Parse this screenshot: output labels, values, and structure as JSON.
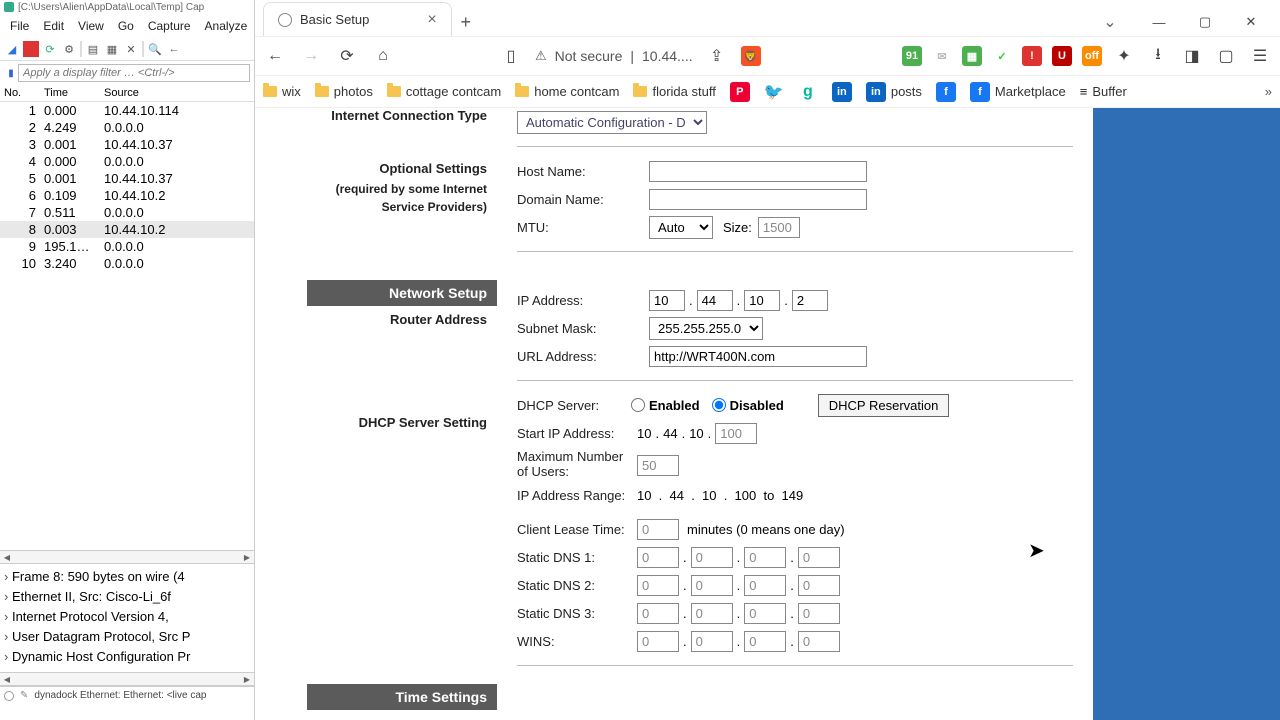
{
  "wireshark": {
    "title": "[C:\\Users\\Alien\\AppData\\Local\\Temp] Cap",
    "menus": [
      "File",
      "Edit",
      "View",
      "Go",
      "Capture",
      "Analyze"
    ],
    "filter_placeholder": "Apply a display filter … <Ctrl-/>",
    "cols": [
      "No.",
      "Time",
      "Source"
    ],
    "packets": [
      {
        "no": "1",
        "t": "0.000",
        "src": "10.44.10.114"
      },
      {
        "no": "2",
        "t": "4.249",
        "src": "0.0.0.0"
      },
      {
        "no": "3",
        "t": "0.001",
        "src": "10.44.10.37"
      },
      {
        "no": "4",
        "t": "0.000",
        "src": "0.0.0.0"
      },
      {
        "no": "5",
        "t": "0.001",
        "src": "10.44.10.37"
      },
      {
        "no": "6",
        "t": "0.109",
        "src": "10.44.10.2"
      },
      {
        "no": "7",
        "t": "0.511",
        "src": "0.0.0.0"
      },
      {
        "no": "8",
        "t": "0.003",
        "src": "10.44.10.2",
        "sel": true
      },
      {
        "no": "9",
        "t": "195.1…",
        "src": "0.0.0.0"
      },
      {
        "no": "10",
        "t": "3.240",
        "src": "0.0.0.0"
      }
    ],
    "details": [
      "Frame 8: 590 bytes on wire (4",
      "Ethernet II, Src: Cisco-Li_6f",
      "Internet Protocol Version 4,",
      "User Datagram Protocol, Src P",
      "Dynamic Host Configuration Pr"
    ],
    "status": "dynadock Ethernet: Ethernet: <live cap"
  },
  "browser": {
    "tab_title": "Basic Setup",
    "url_warn": "Not secure",
    "url_host": "10.44....",
    "bookmarks": [
      "wix",
      "photos",
      "cottage contcam",
      "home contcam",
      "florida stuff"
    ],
    "bookmark_ext": [
      "posts",
      "Marketplace",
      "Buffer"
    ]
  },
  "router": {
    "conn_label": "Internet Connection Type",
    "conn_value": "Automatic Configuration - DHCP",
    "opt_head": "Optional Settings",
    "opt_sub1": "(required by some Internet",
    "opt_sub2": "Service Providers)",
    "host_label": "Host Name:",
    "domain_label": "Domain Name:",
    "mtu_label": "MTU:",
    "mtu_mode": "Auto",
    "mtu_size_label": "Size:",
    "mtu_size": "1500",
    "net_setup": "Network Setup",
    "router_addr": "Router Address",
    "ip_label": "IP Address:",
    "ip": [
      "10",
      "44",
      "10",
      "2"
    ],
    "mask_label": "Subnet Mask:",
    "mask": "255.255.255.0",
    "url_label": "URL Address:",
    "url_val": "http://WRT400N.com",
    "dhcp_head": "DHCP Server Setting",
    "dhcp_label": "DHCP Server:",
    "enabled": "Enabled",
    "disabled": "Disabled",
    "reservation": "DHCP Reservation",
    "start_label": "Start IP Address:",
    "start_prefix": [
      "10",
      "44",
      "10"
    ],
    "start_val": "100",
    "max_label1": "Maximum Number",
    "max_label2": "of Users:",
    "max_val": "50",
    "range_label": "IP Address Range:",
    "range_text": "10  .  44  .  10  .  100  to  149",
    "lease_label": "Client Lease Time:",
    "lease_val": "0",
    "lease_suffix": "minutes (0 means one day)",
    "dns1": "Static DNS 1:",
    "dns2": "Static DNS 2:",
    "dns3": "Static DNS 3:",
    "wins": "WINS:",
    "zero": "0",
    "time": "Time Settings"
  }
}
